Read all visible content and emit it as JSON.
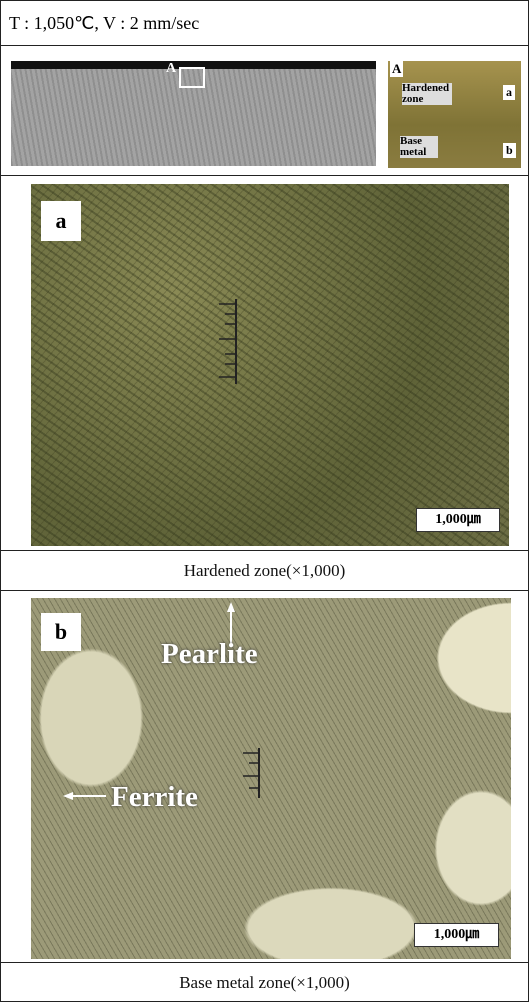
{
  "header": {
    "condition": "T : 1,050℃, V : 2 mm/sec"
  },
  "overview": {
    "marker": "A",
    "inset": {
      "marker": "A",
      "hardened_label": "Hardened zone",
      "hardened_point": "a",
      "base_label": "Base metal",
      "base_point": "b"
    }
  },
  "panels": [
    {
      "label": "a",
      "scale_bar": "1,000㎛",
      "caption": "Hardened zone(×1,000)"
    },
    {
      "label": "b",
      "annotations": [
        "Pearlite",
        "Ferrite"
      ],
      "scale_bar": "1,000㎛",
      "caption": "Base metal zone(×1,000)"
    }
  ]
}
